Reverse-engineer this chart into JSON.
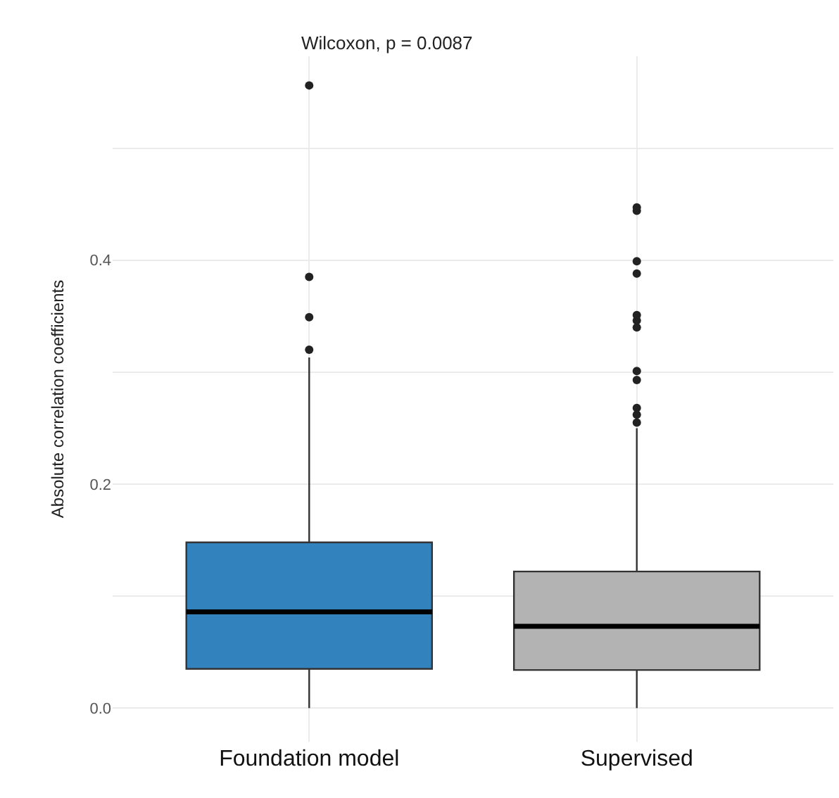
{
  "chart_data": {
    "type": "box",
    "categories": [
      "Foundation model",
      "Supervised"
    ],
    "ylabel": "Absolute correlation coefficients",
    "series": [
      {
        "color": "#3182bd",
        "boxes": [
          {
            "low": 0.0,
            "q1": 0.035,
            "median": 0.086,
            "q3": 0.148,
            "high": 0.313,
            "outliers": [
              0.32,
              0.349,
              0.385,
              0.556
            ]
          },
          null
        ]
      },
      {
        "color": "#b3b3b3",
        "boxes": [
          null,
          {
            "low": 0.0,
            "q1": 0.034,
            "median": 0.073,
            "q3": 0.122,
            "high": 0.25,
            "outliers": [
              0.255,
              0.262,
              0.268,
              0.293,
              0.301,
              0.34,
              0.346,
              0.351,
              0.388,
              0.399,
              0.444,
              0.447
            ]
          }
        ]
      }
    ],
    "ylim": [
      -0.03,
      0.582
    ],
    "yticks": [
      {
        "value": 0.0,
        "label": "0.0"
      },
      {
        "value": 0.1,
        "label": null
      },
      {
        "value": 0.2,
        "label": "0.2"
      },
      {
        "value": 0.3,
        "label": null
      },
      {
        "value": 0.4,
        "label": "0.4"
      },
      {
        "value": 0.5,
        "label": null
      }
    ],
    "grid": true,
    "annotations": [
      "Wilcoxon, p = 0.0087"
    ]
  }
}
